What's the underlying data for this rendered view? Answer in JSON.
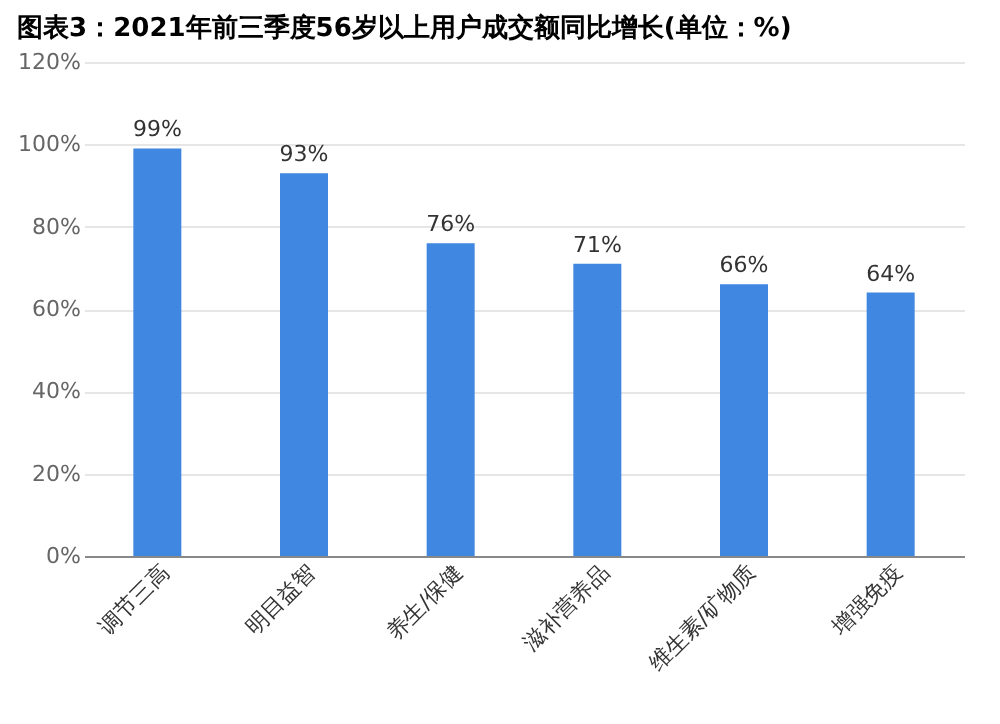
{
  "chart_data": {
    "type": "bar",
    "title": "图表3：2021年前三季度56岁以上用户成交额同比增长(单位：%)",
    "categories": [
      "调节三高",
      "明目益智",
      "养生/保健",
      "滋补营养品",
      "维生素/矿物质",
      "增强免疫"
    ],
    "values": [
      99,
      93,
      76,
      71,
      66,
      64
    ],
    "value_labels": [
      "99%",
      "93%",
      "76%",
      "71%",
      "66%",
      "64%"
    ],
    "color": "#3f87e1",
    "ylim": [
      0,
      120
    ],
    "yticks": [
      {
        "value": 0,
        "label": "0%"
      },
      {
        "value": 20,
        "label": "20%"
      },
      {
        "value": 40,
        "label": "40%"
      },
      {
        "value": 60,
        "label": "60%"
      },
      {
        "value": 80,
        "label": "80%"
      },
      {
        "value": 100,
        "label": "100%"
      },
      {
        "value": 120,
        "label": "120%"
      }
    ],
    "grid": "y"
  }
}
